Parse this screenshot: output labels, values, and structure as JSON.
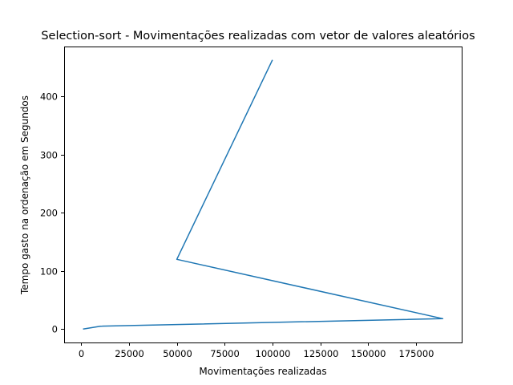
{
  "chart_data": {
    "type": "line",
    "title": "Selection-sort - Movimentações realizadas com vetor de valores aleatórios",
    "xlabel": "Movimentações realizadas",
    "ylabel": "Tempo gasto na ordenação  em Segundos",
    "xlim": [
      -8900,
      198900
    ],
    "ylim": [
      -23,
      486
    ],
    "x_ticks": [
      0,
      25000,
      50000,
      75000,
      100000,
      125000,
      150000,
      175000
    ],
    "y_ticks": [
      0,
      100,
      200,
      300,
      400
    ],
    "grid": false,
    "line_color": "#1f77b4",
    "series": [
      {
        "x": [
          1000,
          10000,
          189000,
          50000,
          100000
        ],
        "y": [
          0,
          5,
          18,
          120,
          463
        ]
      }
    ]
  }
}
